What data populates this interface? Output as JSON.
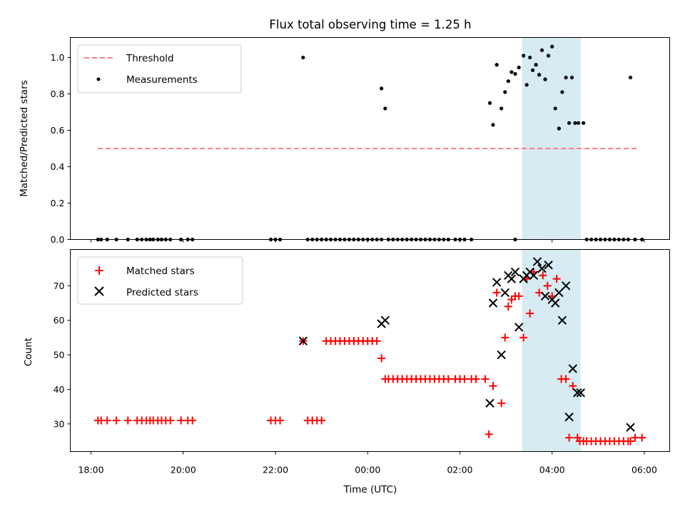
{
  "chart_data": {
    "type": "scatter",
    "title": "Flux total observing time = 1.25 h",
    "x_unit": "hours since 18:00 UTC",
    "xlim": [
      -0.45,
      12.55
    ],
    "xlabel": "Time (UTC)",
    "x_tick_values": [
      0,
      2,
      4,
      6,
      8,
      10,
      12
    ],
    "x_tick_labels": [
      "18:00",
      "20:00",
      "22:00",
      "00:00",
      "02:00",
      "04:00",
      "06:00"
    ],
    "highlight_span": {
      "x0": 9.35,
      "x1": 10.62,
      "color": "#add8e6"
    },
    "top_panel": {
      "ylabel": "Matched/Predicted stars",
      "ylim": [
        0,
        1.11
      ],
      "y_ticks": [
        "0.0",
        "0.2",
        "0.4",
        "0.6",
        "0.8",
        "1.0"
      ],
      "y_tick_values": [
        0,
        0.2,
        0.4,
        0.6,
        0.8,
        1.0
      ],
      "threshold": {
        "label": "Threshold",
        "value": 0.5,
        "x_start": 0.15,
        "x_end": 11.9,
        "color": "#ff7f7f"
      },
      "legend": [
        "Threshold",
        "Measurements"
      ],
      "measurements": {
        "label": "Measurements",
        "color": "#000000",
        "x": [
          0.15,
          0.22,
          0.35,
          0.55,
          0.8,
          1.0,
          1.1,
          1.2,
          1.28,
          1.35,
          1.45,
          1.53,
          1.62,
          1.72,
          1.95,
          2.1,
          2.2,
          3.9,
          4.0,
          4.1,
          4.7,
          4.8,
          4.9,
          5.0,
          5.1,
          5.2,
          5.3,
          5.4,
          5.5,
          5.6,
          5.7,
          5.8,
          5.9,
          6.0,
          6.1,
          6.2,
          6.3,
          6.45,
          6.55,
          6.65,
          6.75,
          6.85,
          6.95,
          7.05,
          7.15,
          7.25,
          7.35,
          7.45,
          7.55,
          7.65,
          7.75,
          7.9,
          8.0,
          8.1,
          8.25,
          9.2,
          10.75,
          10.85,
          10.95,
          11.05,
          11.15,
          11.25,
          11.35,
          11.45,
          11.55,
          11.65,
          11.8,
          11.95,
          4.6,
          6.3,
          6.38,
          8.65,
          8.72,
          8.8,
          8.9,
          8.98,
          9.05,
          9.12,
          9.2,
          9.28,
          9.38,
          9.45,
          9.52,
          9.58,
          9.65,
          9.72,
          9.78,
          9.85,
          9.92,
          10.0,
          10.07,
          10.15,
          10.22,
          10.3,
          10.37,
          10.43,
          10.5,
          10.57,
          10.68,
          11.7
        ],
        "y": [
          0,
          0,
          0,
          0,
          0,
          0,
          0,
          0,
          0,
          0,
          0,
          0,
          0,
          0,
          0,
          0,
          0,
          0,
          0,
          0,
          0,
          0,
          0,
          0,
          0,
          0,
          0,
          0,
          0,
          0,
          0,
          0,
          0,
          0,
          0,
          0,
          0,
          0,
          0,
          0,
          0,
          0,
          0,
          0,
          0,
          0,
          0,
          0,
          0,
          0,
          0,
          0,
          0,
          0,
          0,
          0,
          0,
          0,
          0,
          0,
          0,
          0,
          0,
          0,
          0,
          0,
          0,
          0,
          1.0,
          0.83,
          0.72,
          0.75,
          0.63,
          0.96,
          0.72,
          0.81,
          0.87,
          0.92,
          0.91,
          0.945,
          1.01,
          0.85,
          1.0,
          0.93,
          0.96,
          0.905,
          1.04,
          0.88,
          1.01,
          1.06,
          0.72,
          0.61,
          0.81,
          0.89,
          0.64,
          0.89,
          0.64,
          0.64,
          0.64,
          0.89
        ]
      }
    },
    "bottom_panel": {
      "ylabel": "Count",
      "ylim": [
        22,
        80.5
      ],
      "y_ticks": [
        "30",
        "40",
        "50",
        "60",
        "70"
      ],
      "y_tick_values": [
        30,
        40,
        50,
        60,
        70
      ],
      "legend": [
        "Matched stars",
        "Predicted stars"
      ],
      "series": [
        {
          "name": "Matched stars",
          "marker": "plus",
          "color": "#ff0000",
          "x": [
            0.15,
            0.22,
            0.35,
            0.55,
            0.8,
            1.0,
            1.1,
            1.2,
            1.28,
            1.35,
            1.45,
            1.53,
            1.62,
            1.72,
            1.95,
            2.1,
            2.2,
            3.9,
            4.0,
            4.1,
            4.7,
            4.8,
            4.9,
            5.0,
            4.6,
            5.1,
            5.2,
            5.3,
            5.4,
            5.5,
            5.6,
            5.7,
            5.8,
            5.9,
            6.0,
            6.1,
            6.2,
            6.3,
            6.38,
            6.45,
            6.55,
            6.65,
            6.75,
            6.85,
            6.95,
            7.05,
            7.15,
            7.25,
            7.35,
            7.45,
            7.55,
            7.65,
            7.75,
            7.9,
            8.0,
            8.1,
            8.25,
            8.35,
            8.55,
            8.63,
            8.72,
            8.8,
            8.9,
            8.98,
            9.05,
            9.12,
            9.2,
            9.28,
            9.38,
            9.45,
            9.52,
            9.6,
            9.72,
            9.8,
            9.9,
            10.0,
            10.1,
            10.2,
            10.3,
            10.37,
            10.45,
            10.55,
            10.6,
            10.68,
            10.75,
            10.85,
            10.95,
            11.05,
            11.15,
            11.25,
            11.35,
            11.45,
            11.55,
            11.65,
            11.7,
            11.8,
            11.95
          ],
          "y": [
            31,
            31,
            31,
            31,
            31,
            31,
            31,
            31,
            31,
            31,
            31,
            31,
            31,
            31,
            31,
            31,
            31,
            31,
            31,
            31,
            31,
            31,
            31,
            31,
            54,
            54,
            54,
            54,
            54,
            54,
            54,
            54,
            54,
            54,
            54,
            54,
            54,
            49,
            43,
            43,
            43,
            43,
            43,
            43,
            43,
            43,
            43,
            43,
            43,
            43,
            43,
            43,
            43,
            43,
            43,
            43,
            43,
            43,
            43,
            27,
            41,
            68,
            36,
            55,
            64,
            66,
            67,
            67,
            55,
            72,
            62,
            74,
            68,
            73,
            70,
            67,
            72,
            43,
            43,
            26,
            41,
            26,
            25,
            25,
            25,
            25,
            25,
            25,
            25,
            25,
            25,
            25,
            25,
            25,
            25,
            26,
            26
          ]
        },
        {
          "name": "Predicted stars",
          "marker": "x",
          "color": "#000000",
          "x": [
            4.6,
            6.3,
            6.38,
            8.65,
            8.72,
            8.8,
            8.9,
            8.98,
            9.05,
            9.12,
            9.2,
            9.28,
            9.38,
            9.45,
            9.52,
            9.6,
            9.68,
            9.78,
            9.85,
            9.92,
            10.0,
            10.07,
            10.15,
            10.22,
            10.3,
            10.37,
            10.45,
            10.55,
            10.62,
            11.7
          ],
          "y": [
            54,
            59,
            60,
            36,
            65,
            71,
            50,
            68,
            73,
            72,
            74,
            58,
            72,
            73,
            74,
            73,
            77,
            75,
            67,
            76,
            66,
            65,
            68,
            60,
            70,
            32,
            46,
            39,
            39,
            29
          ]
        }
      ]
    }
  }
}
